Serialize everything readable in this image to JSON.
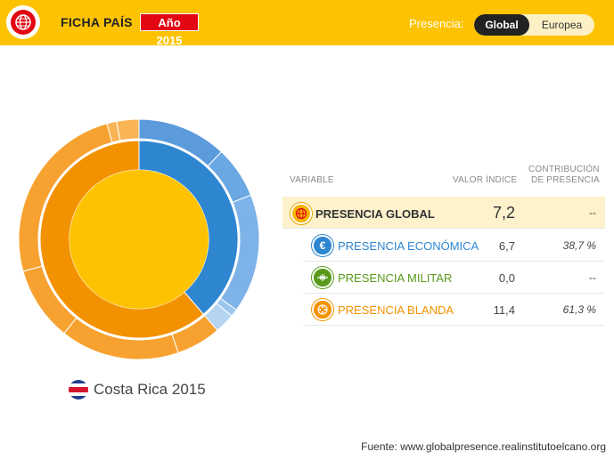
{
  "header": {
    "title": "FICHA PAÍS",
    "year_badge": "Año 2015",
    "presence_label": "Presencia:",
    "toggle": {
      "global": "Global",
      "europea": "Europea",
      "selected": "Global"
    }
  },
  "country": {
    "name": "Costa Rica 2015",
    "flag": "costa-rica-flag"
  },
  "table": {
    "headers": {
      "variable": "VARIABLE",
      "valor": "VALOR ÍNDICE",
      "contribucion_1": "CONTRIBUCIÓN",
      "contribucion_2": "DE PRESENCIA"
    },
    "rows": [
      {
        "label": "PRESENCIA GLOBAL",
        "value": "7,2",
        "contribution": "--",
        "icon": "globe-icon",
        "color": "#e8a200"
      },
      {
        "label": "PRESENCIA ECONÓMICA",
        "value": "6,7",
        "contribution": "38,7 %",
        "icon": "euro-icon",
        "color": "#2e86d1"
      },
      {
        "label": "PRESENCIA MILITAR",
        "value": "0,0",
        "contribution": "--",
        "icon": "plane-icon",
        "color": "#5a9a1a"
      },
      {
        "label": "PRESENCIA BLANDA",
        "value": "11,4",
        "contribution": "61,3 %",
        "icon": "film-reel-icon",
        "color": "#f39200"
      }
    ]
  },
  "footer": "Fuente: www.globalpresence.realinstitutoelcano.org",
  "chart_data": {
    "type": "pie",
    "center_color": "#fdc300",
    "rings": [
      {
        "name": "middle",
        "slices": [
          {
            "label": "Presencia económica",
            "value": 38.7,
            "color": "#2e86d1"
          },
          {
            "label": "Presencia militar",
            "value": 0.0,
            "color": "#5a9a1a"
          },
          {
            "label": "Presencia blanda",
            "value": 61.3,
            "color": "#f39200"
          }
        ]
      },
      {
        "name": "outer",
        "slices": [
          {
            "value": 12.0,
            "color": "#5b9bdc"
          },
          {
            "value": 7.0,
            "color": "#6aa8e3"
          },
          {
            "value": 16.0,
            "color": "#7db3e8"
          },
          {
            "value": 1.0,
            "color": "#9cc5ee"
          },
          {
            "value": 2.7,
            "color": "#b5d4f1"
          },
          {
            "value": 6.0,
            "color": "#f7a230"
          },
          {
            "value": 16.0,
            "color": "#f7a230"
          },
          {
            "value": 10.0,
            "color": "#f7a230"
          },
          {
            "value": 25.0,
            "color": "#f7a230"
          },
          {
            "value": 1.3,
            "color": "#f9b455"
          },
          {
            "value": 3.0,
            "color": "#f9b455"
          }
        ]
      }
    ]
  }
}
